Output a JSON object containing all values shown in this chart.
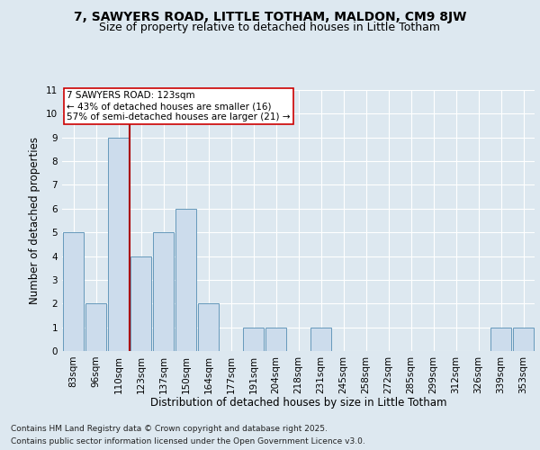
{
  "title1": "7, SAWYERS ROAD, LITTLE TOTHAM, MALDON, CM9 8JW",
  "title2": "Size of property relative to detached houses in Little Totham",
  "xlabel": "Distribution of detached houses by size in Little Totham",
  "ylabel": "Number of detached properties",
  "categories": [
    "83sqm",
    "96sqm",
    "110sqm",
    "123sqm",
    "137sqm",
    "150sqm",
    "164sqm",
    "177sqm",
    "191sqm",
    "204sqm",
    "218sqm",
    "231sqm",
    "245sqm",
    "258sqm",
    "272sqm",
    "285sqm",
    "299sqm",
    "312sqm",
    "326sqm",
    "339sqm",
    "353sqm"
  ],
  "values": [
    5,
    2,
    9,
    4,
    5,
    6,
    2,
    0,
    1,
    1,
    0,
    1,
    0,
    0,
    0,
    0,
    0,
    0,
    0,
    1,
    1
  ],
  "bar_color": "#ccdcec",
  "bar_edge_color": "#6699bb",
  "property_index": 3,
  "property_line_color": "#aa0000",
  "ylim": [
    0,
    11
  ],
  "yticks": [
    0,
    1,
    2,
    3,
    4,
    5,
    6,
    7,
    8,
    9,
    10,
    11
  ],
  "annotation_line1": "7 SAWYERS ROAD: 123sqm",
  "annotation_line2": "← 43% of detached houses are smaller (16)",
  "annotation_line3": "57% of semi-detached houses are larger (21) →",
  "annotation_box_color": "#ffffff",
  "annotation_box_edge": "#cc0000",
  "footer1": "Contains HM Land Registry data © Crown copyright and database right 2025.",
  "footer2": "Contains public sector information licensed under the Open Government Licence v3.0.",
  "background_color": "#dde8f0",
  "plot_background": "#dde8f0",
  "grid_color": "#ffffff",
  "title1_fontsize": 10,
  "title2_fontsize": 9,
  "tick_fontsize": 7.5,
  "label_fontsize": 8.5,
  "annot_fontsize": 7.5,
  "footer_fontsize": 6.5
}
